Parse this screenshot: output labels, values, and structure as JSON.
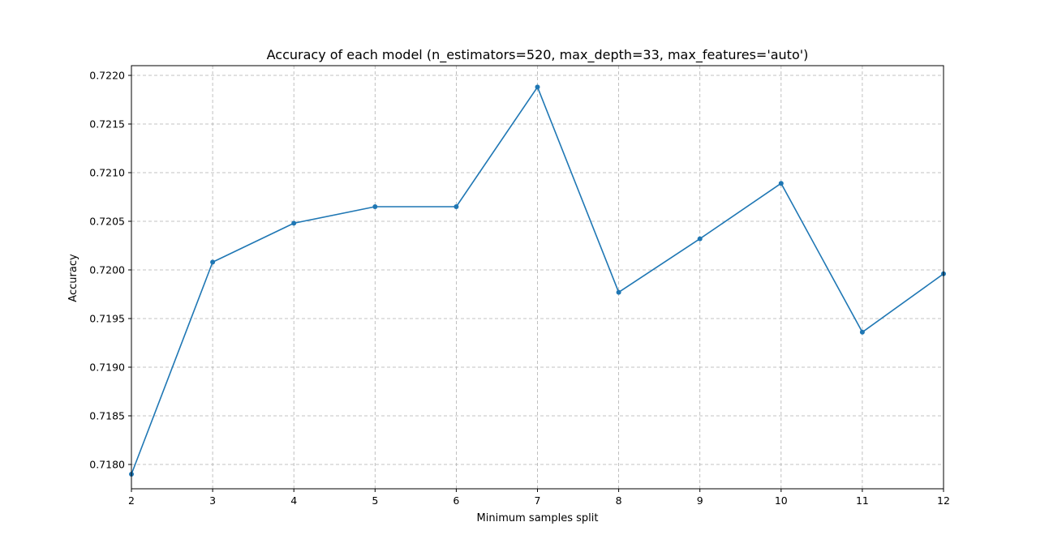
{
  "chart_data": {
    "type": "line",
    "title": "Accuracy of each model (n_estimators=520, max_depth=33, max_features='auto')",
    "xlabel": "Minimum samples split",
    "ylabel": "Accuracy",
    "x": [
      2,
      3,
      4,
      5,
      6,
      7,
      8,
      9,
      10,
      11,
      12
    ],
    "series": [
      {
        "values": [
          0.7179,
          0.72008,
          0.72048,
          0.72065,
          0.72065,
          0.72188,
          0.71977,
          0.72032,
          0.72089,
          0.71936,
          0.71996
        ]
      }
    ],
    "xlim": [
      2,
      12
    ],
    "ylim": [
      0.71775,
      0.7221
    ],
    "xticks": [
      "2",
      "3",
      "4",
      "5",
      "6",
      "7",
      "8",
      "9",
      "10",
      "11",
      "12"
    ],
    "yticks": [
      "0.7180",
      "0.7185",
      "0.7190",
      "0.7195",
      "0.7200",
      "0.7205",
      "0.7210",
      "0.7215",
      "0.7220"
    ],
    "ytick_values": [
      0.718,
      0.7185,
      0.719,
      0.7195,
      0.72,
      0.7205,
      0.721,
      0.7215,
      0.722
    ],
    "grid": true,
    "marker": "circle",
    "colors": {
      "line": "#1f77b4",
      "grid": "#b0b0b0",
      "axis": "#000000"
    }
  }
}
